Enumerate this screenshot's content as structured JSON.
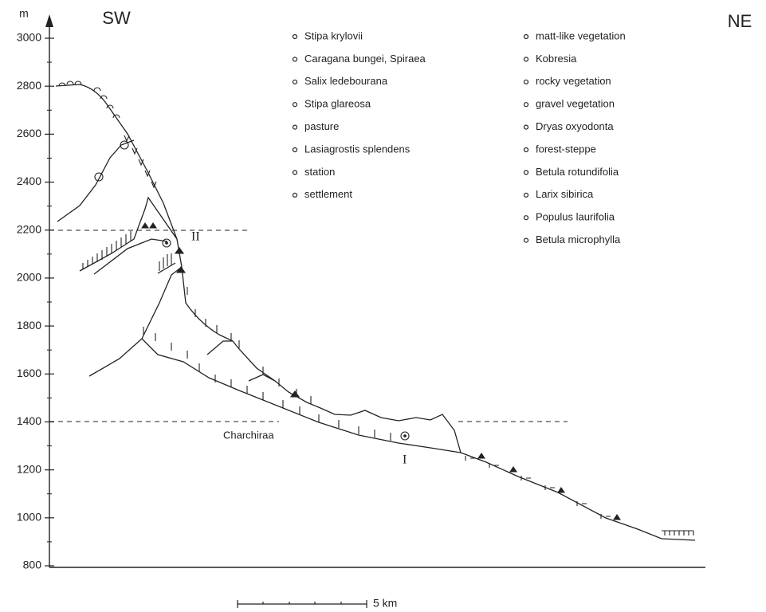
{
  "axis": {
    "unit": "m",
    "ticks": [
      800,
      1000,
      1200,
      1400,
      1600,
      1800,
      2000,
      2200,
      2400,
      2600,
      2800,
      3000
    ]
  },
  "directions": {
    "left": "SW",
    "right": "NE"
  },
  "legend": {
    "left": [
      "Stipa krylovii",
      "Caragana bungei, Spiraea",
      "Salix ledebourana",
      "Stipa glareosa",
      "pasture",
      "Lasiagrostis splendens",
      "station",
      "settlement"
    ],
    "right": [
      "matt-like vegetation",
      "Kobresia",
      "rocky vegetation",
      "gravel vegetation",
      "Dryas oxyodonta",
      "forest-steppe",
      "Betula rotundifolia",
      "Larix sibirica",
      "Populus laurifolia",
      "Betula microphylla"
    ]
  },
  "labels": {
    "place": "Charchiraa",
    "site_1": "I",
    "site_2": "II"
  },
  "scale": "5 km"
}
